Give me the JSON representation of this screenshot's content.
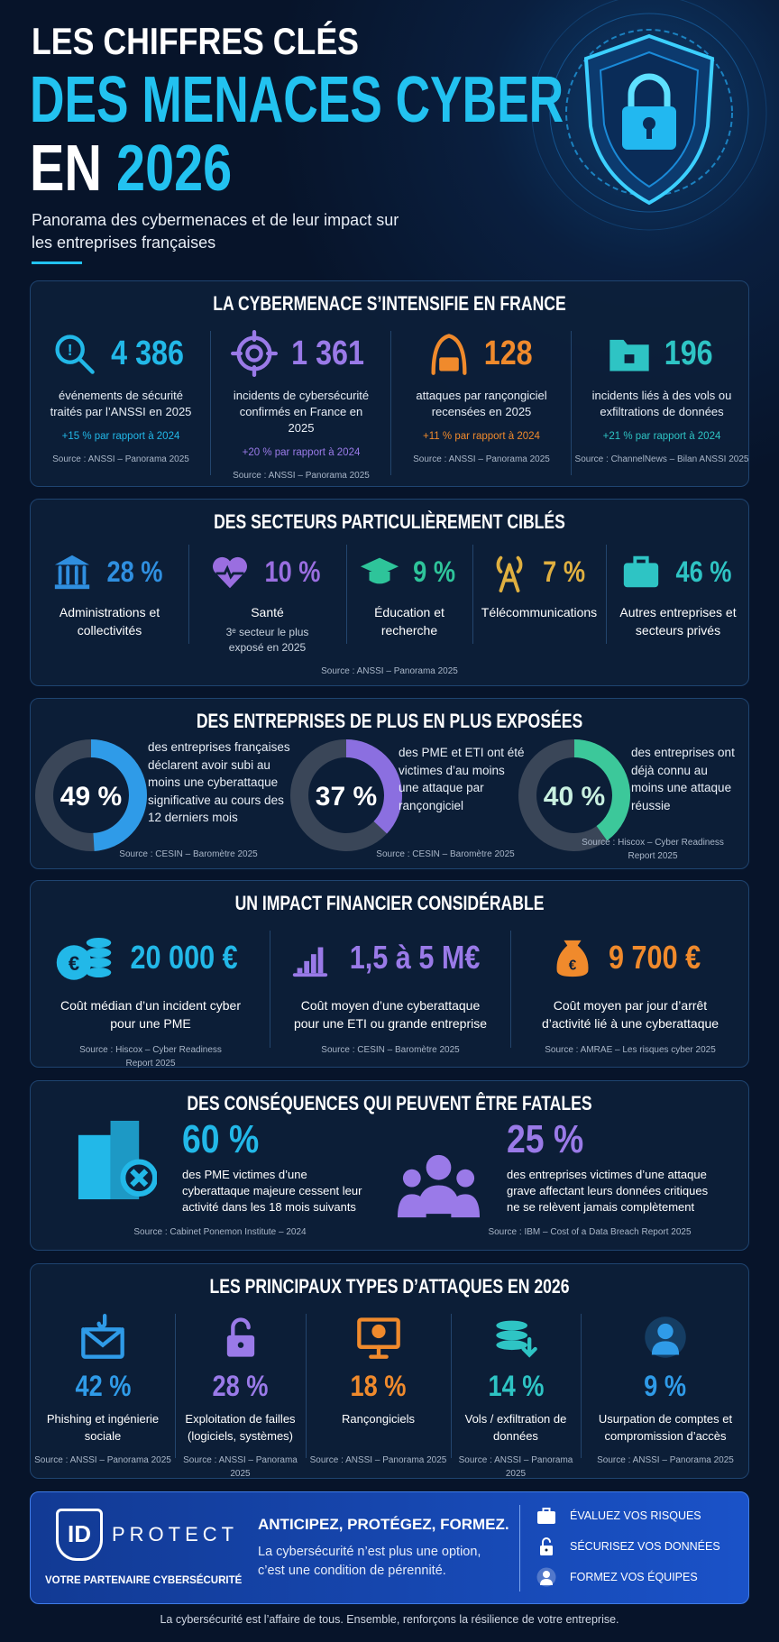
{
  "header": {
    "title_line1": "LES CHIFFRES CLÉS",
    "title_line2": "DES MENACES CYBER",
    "title_line3a": "EN",
    "title_line3b": "2026",
    "subtitle": "Panorama des cybermenaces et de leur impact sur les entreprises françaises"
  },
  "threat": {
    "title": "LA CYBERMENACE S’INTENSIFIE EN FRANCE",
    "items": [
      {
        "figure": "4 386",
        "text": "événements de sécurité traités par l’ANSSI en 2025",
        "trend": "+15 % par rapport à 2024",
        "source": "Source : ANSSI – Panorama 2025",
        "color": "#22b8e8"
      },
      {
        "figure": "1 361",
        "text": "incidents de cybersécurité confirmés en France en 2025",
        "trend": "+20 % par rapport à 2024",
        "source": "Source : ANSSI – Panorama 2025",
        "color": "#9a7ae8"
      },
      {
        "figure": "128",
        "text": "attaques par rançongiciel recensées en 2025",
        "trend": "+11 % par rapport à 2024",
        "source": "Source : ANSSI – Panorama 2025",
        "color": "#f08a2c"
      },
      {
        "figure": "196",
        "text": "incidents liés à des vols ou exfiltrations de données",
        "trend": "+21 % par rapport à 2024",
        "source": "Source : ChannelNews – Bilan ANSSI 2025",
        "color": "#2ec4c4"
      }
    ]
  },
  "sectors": {
    "title": "DES SECTEURS PARTICULIÈREMENT CIBLÉS",
    "items": [
      {
        "figure": "28 %",
        "label": "Administrations et collectivités",
        "color": "#2f8fe0"
      },
      {
        "figure": "10 %",
        "label": "Santé",
        "note": "3ᵉ secteur le plus exposé en 2025",
        "color": "#9a6ee0"
      },
      {
        "figure": "9 %",
        "label": "Éducation et recherche",
        "color": "#2ec49a"
      },
      {
        "figure": "7 %",
        "label": "Télécommunications",
        "color": "#e0b040"
      },
      {
        "figure": "46 %",
        "label": "Autres entreprises et secteurs privés",
        "color": "#2ec4c4"
      }
    ],
    "source": "Source : ANSSI – Panorama 2025"
  },
  "exposure": {
    "title": "DES ENTREPRISES DE PLUS EN PLUS EXPOSÉES",
    "items": [
      {
        "value": 49,
        "value_label": "49 %",
        "text": "des entreprises françaises déclarent avoir subi au moins une cyberattaque significative au cours des 12 derniers mois",
        "source": "Source : CESIN – Baromètre 2025",
        "color": "#2f9be8"
      },
      {
        "value": 37,
        "value_label": "37 %",
        "text": "des PME et ETI ont été victimes d’au moins une attaque par rançongiciel",
        "source": "Source : CESIN – Baromètre 2025",
        "color": "#8b6fe0"
      },
      {
        "value": 40,
        "value_label": "40 %",
        "text": "des entreprises ont déjà connu au moins une attaque réussie",
        "source": "Source : Hiscox – Cyber Readiness Report 2025",
        "color": "#3cc89a"
      }
    ]
  },
  "financial": {
    "title": "UN IMPACT FINANCIER CONSIDÉRABLE",
    "items": [
      {
        "figure": "20 000 €",
        "text": "Coût médian d’un incident cyber pour une PME",
        "source": "Source : Hiscox – Cyber Readiness Report 2025",
        "color": "#22b8e8"
      },
      {
        "figure": "1,5 à 5 M€",
        "text": "Coût moyen d’une cyberattaque pour une ETI ou grande entreprise",
        "source": "Source : CESIN – Baromètre 2025",
        "color": "#9a7ae8"
      },
      {
        "figure": "9 700 €",
        "text": "Coût moyen par jour d’arrêt d’activité lié à une cyberattaque",
        "source": "Source : AMRAE – Les risques cyber 2025",
        "color": "#f08a2c"
      }
    ]
  },
  "consequences": {
    "title": "DES CONSÉQUENCES QUI PEUVENT ÊTRE FATALES",
    "items": [
      {
        "figure": "60 %",
        "text": "des PME victimes d’une cyberattaque majeure cessent leur activité dans les 18 mois suivants",
        "source": "Source : Cabinet Ponemon Institute – 2024",
        "color": "#22b8e8"
      },
      {
        "figure": "25 %",
        "text": "des entreprises victimes d’une attaque grave affectant leurs données critiques ne se relèvent jamais complètement",
        "source": "Source : IBM – Cost of a Data Breach Report 2025",
        "color": "#9a7ae8"
      }
    ]
  },
  "attacks": {
    "title": "LES PRINCIPAUX TYPES D’ATTAQUES EN 2026",
    "items": [
      {
        "figure": "42 %",
        "label": "Phishing et ingénierie sociale",
        "source": "Source : ANSSI – Panorama 2025",
        "color": "#2f9be8"
      },
      {
        "figure": "28 %",
        "label": "Exploitation de failles (logiciels, systèmes)",
        "source": "Source : ANSSI – Panorama 2025",
        "color": "#9a7ae8"
      },
      {
        "figure": "18 %",
        "label": "Rançongiciels",
        "source": "Source : ANSSI – Panorama 2025",
        "color": "#f08a2c"
      },
      {
        "figure": "14 %",
        "label": "Vols / exfiltration de données",
        "source": "Source : ANSSI – Panorama 2025",
        "color": "#2ec4c4"
      },
      {
        "figure": "9 %",
        "label": "Usurpation de comptes et compromission d’accès",
        "source": "Source : ANSSI – Panorama 2025",
        "color": "#2f9be8"
      }
    ]
  },
  "banner": {
    "logo": "ID",
    "brand": "PROTECT",
    "tagline": "VOTRE PARTENAIRE CYBERSÉCURITÉ",
    "headline": "ANTICIPEZ, PROTÉGEZ, FORMEZ.",
    "text": "La cybersécurité n’est plus une option, c’est une condition de pérennité.",
    "actions": [
      "ÉVALUEZ VOS RISQUES",
      "SÉCURISEZ VOS DONNÉES",
      "FORMEZ VOS ÉQUIPES"
    ]
  },
  "footer": "La cybersécurité est l’affaire de tous. Ensemble, renforçons la résilience de votre entreprise."
}
